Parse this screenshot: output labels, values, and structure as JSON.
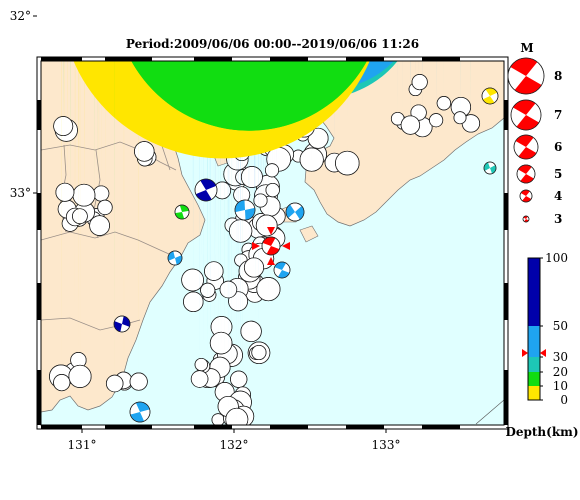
{
  "title": "Period:2009/06/06 00:00--2019/06/06 11:26",
  "map": {
    "lon_ticks": [
      {
        "label": "131°",
        "lon": 131
      },
      {
        "label": "132°",
        "lon": 132
      },
      {
        "label": "133°",
        "lon": 133
      }
    ],
    "lat_ticks": [
      {
        "label": "33°",
        "lat": 33
      },
      {
        "label": "32°",
        "lat": 32
      }
    ],
    "colors": {
      "sea": "#e0ffff",
      "land": "#fde8cc",
      "border": "#9a8f88",
      "coast": "#707070"
    }
  },
  "magnitude_legend": {
    "title": "M",
    "items": [
      {
        "label": "8",
        "mag": 8
      },
      {
        "label": "7",
        "mag": 7
      },
      {
        "label": "6",
        "mag": 6
      },
      {
        "label": "5",
        "mag": 5
      },
      {
        "label": "4",
        "mag": 4
      },
      {
        "label": "3",
        "mag": 3
      }
    ],
    "color": "#ff0000"
  },
  "depth_scale": {
    "title": "Depth(km)",
    "ticks": [
      "100",
      "50",
      "30",
      "20",
      "10",
      "0"
    ],
    "colors": {
      "deep": "#0000aa",
      "mid": "#1fa4f0",
      "shallow_mid": "#1dc7b6",
      "shallow": "#11dd11",
      "surface": "#ffe600"
    },
    "marker_depth": 30
  },
  "main_event": {
    "color": "#ff0000"
  }
}
